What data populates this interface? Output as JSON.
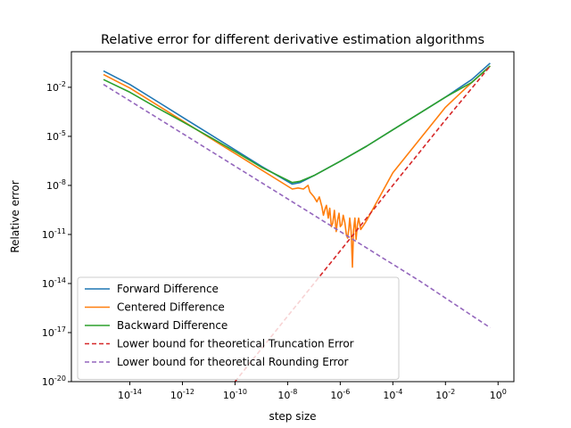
{
  "chart_data": {
    "type": "line",
    "title": "Relative error for different derivative estimation algorithms",
    "xlabel": "step size",
    "ylabel": "Relative error",
    "x_scale": "log",
    "y_scale": "log",
    "xlim": [
      6e-17,
      4.0
    ],
    "ylim": [
      1e-20,
      1.5
    ],
    "grid": false,
    "legend_position": "lower-left",
    "x_ticks": [
      {
        "value": 1e-14,
        "exp": "-14"
      },
      {
        "value": 1e-12,
        "exp": "-12"
      },
      {
        "value": 1e-10,
        "exp": "-10"
      },
      {
        "value": 1e-08,
        "exp": "-8"
      },
      {
        "value": 1e-06,
        "exp": "-6"
      },
      {
        "value": 0.0001,
        "exp": "-4"
      },
      {
        "value": 0.01,
        "exp": "-2"
      },
      {
        "value": 1,
        "exp": "0"
      }
    ],
    "y_ticks": [
      {
        "value": 0.01,
        "exp": "-2"
      },
      {
        "value": 1e-05,
        "exp": "-5"
      },
      {
        "value": 1e-08,
        "exp": "-8"
      },
      {
        "value": 1e-11,
        "exp": "-11"
      },
      {
        "value": 1e-14,
        "exp": "-14"
      },
      {
        "value": 1e-17,
        "exp": "-17"
      },
      {
        "value": 1e-20,
        "exp": "-20"
      }
    ],
    "series": [
      {
        "name": "Forward Difference",
        "color": "#1f77b4",
        "style": "solid",
        "x": [
          1e-15,
          1e-14,
          1e-13,
          1e-12,
          1e-11,
          1e-10,
          1e-09,
          1.5e-08,
          3e-08,
          1e-07,
          1e-06,
          1e-05,
          0.0001,
          0.001,
          0.01,
          0.1,
          0.5
        ],
        "y": [
          0.1,
          0.015,
          0.0015,
          0.00015,
          1.5e-05,
          1.5e-06,
          1.5e-07,
          1.2e-08,
          1.5e-08,
          4e-08,
          3e-07,
          2.5e-06,
          2.5e-05,
          0.00025,
          0.0025,
          0.03,
          0.3
        ]
      },
      {
        "name": "Centered Difference",
        "color": "#ff7f0e",
        "style": "solid",
        "x": [
          1e-15,
          1e-14,
          1e-13,
          1e-12,
          1e-11,
          1e-10,
          1e-09,
          1.5e-08,
          2.5e-08,
          4e-08,
          6e-08,
          7e-08,
          1e-07,
          1.3e-07,
          1.6e-07,
          2e-07,
          2.3e-07,
          2.7e-07,
          3e-07,
          3.5e-07,
          4e-07,
          4.6e-07,
          5.2e-07,
          6e-07,
          7e-07,
          8e-07,
          9e-07,
          1e-06,
          1.15e-06,
          1.3e-06,
          1.5e-06,
          1.7e-06,
          1.9e-06,
          2.1e-06,
          2.3e-06,
          2.6e-06,
          2.9e-06,
          3.2e-06,
          3.6e-06,
          4e-06,
          4.5e-06,
          5e-06,
          6e-06,
          8e-06,
          1e-05,
          0.0001,
          0.001,
          0.01,
          0.1,
          0.5
        ],
        "y": [
          0.06,
          0.009,
          0.0009,
          9e-05,
          9e-06,
          9e-07,
          9e-08,
          6e-09,
          7e-09,
          6e-09,
          1e-08,
          4e-09,
          2e-09,
          1e-09,
          2e-09,
          5e-10,
          1.5e-10,
          4e-10,
          6e-10,
          1e-10,
          4e-10,
          3e-11,
          5e-11,
          3e-10,
          1.5e-11,
          8e-11,
          2e-10,
          3e-11,
          4e-11,
          1.5e-10,
          5e-11,
          1e-11,
          6e-12,
          2e-11,
          1e-10,
          1.5e-11,
          1e-13,
          2e-11,
          1e-10,
          5e-12,
          4e-11,
          1e-10,
          2e-11,
          4e-11,
          7e-11,
          6e-08,
          6e-06,
          0.0006,
          0.02,
          0.2
        ]
      },
      {
        "name": "Backward Difference",
        "color": "#2ca02c",
        "style": "solid",
        "x": [
          1e-15,
          1e-14,
          1e-13,
          1e-12,
          1e-11,
          1e-10,
          1e-09,
          1.5e-08,
          3e-08,
          1e-07,
          1e-06,
          1e-05,
          0.0001,
          0.001,
          0.01,
          0.1,
          0.5
        ],
        "y": [
          0.03,
          0.005,
          0.0006,
          8e-05,
          1e-05,
          1.2e-06,
          1.3e-07,
          1.5e-08,
          1.8e-08,
          4e-08,
          3e-07,
          2.5e-06,
          2.5e-05,
          0.00025,
          0.0025,
          0.02,
          0.2
        ]
      },
      {
        "name": "Lower bound for theoretical Truncation Error",
        "color": "#d62728",
        "style": "dashed",
        "x": [
          1e-10,
          1e-08,
          1e-06,
          0.0001,
          0.01,
          0.5
        ],
        "y": [
          1e-20,
          1e-16,
          1e-12,
          1e-08,
          0.0001,
          0.2
        ]
      },
      {
        "name": "Lower bound for theoretical Rounding Error",
        "color": "#9467bd",
        "style": "dashed",
        "x": [
          1e-15,
          1e-12,
          1e-09,
          1e-06,
          0.001,
          0.5
        ],
        "y": [
          0.015,
          1.5e-05,
          1.5e-08,
          1.5e-11,
          1.5e-14,
          2e-17
        ]
      }
    ]
  }
}
